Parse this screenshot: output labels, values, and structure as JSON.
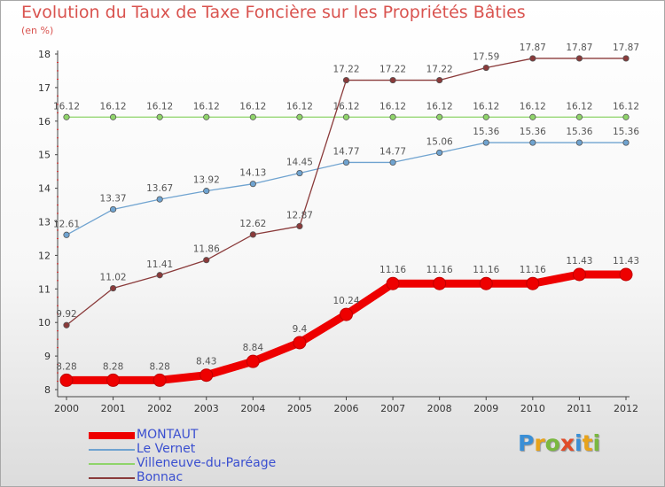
{
  "title": "Evolution du Taux de Taxe Foncière sur les Propriétés Bâties",
  "unit_label": "(en %)",
  "logo": {
    "letters": [
      {
        "ch": "P",
        "color": "#3a8fd6"
      },
      {
        "ch": "r",
        "color": "#e8a31a"
      },
      {
        "ch": "o",
        "color": "#7ab840"
      },
      {
        "ch": "x",
        "color": "#e04c2a"
      },
      {
        "ch": "i",
        "color": "#3a8fd6"
      },
      {
        "ch": "t",
        "color": "#e8a31a"
      },
      {
        "ch": "i",
        "color": "#7ab840"
      }
    ]
  },
  "chart_data": {
    "type": "line",
    "x": [
      "2000",
      "2001",
      "2002",
      "2003",
      "2004",
      "2005",
      "2006",
      "2007",
      "2008",
      "2009",
      "2010",
      "2011",
      "2012"
    ],
    "ylim": [
      8,
      18
    ],
    "yticks": [
      "8",
      "9",
      "10",
      "11",
      "12",
      "13",
      "14",
      "15",
      "16",
      "17",
      "18"
    ],
    "grid": false,
    "legend_position": "bottom-left",
    "series": [
      {
        "name": "MONTAUT",
        "color": "#ee0000",
        "values": [
          8.28,
          8.28,
          8.28,
          8.43,
          8.84,
          9.4,
          10.24,
          11.16,
          11.16,
          11.16,
          11.16,
          11.43,
          11.43
        ],
        "labels": [
          "8.28",
          "8.28",
          "8.28",
          "8.43",
          "8.84",
          "9.4",
          "10.24",
          "11.16",
          "11.16",
          "11.16",
          "11.16",
          "11.43",
          "11.43"
        ]
      },
      {
        "name": "Le Vernet",
        "color": "#6fa3d0",
        "values": [
          12.61,
          13.37,
          13.67,
          13.92,
          14.13,
          14.45,
          14.77,
          14.77,
          15.06,
          15.36,
          15.36,
          15.36,
          15.36
        ],
        "labels": [
          "12.61",
          "13.37",
          "13.67",
          "13.92",
          "14.13",
          "14.45",
          "14.77",
          "14.77",
          "15.06",
          "15.36",
          "15.36",
          "15.36",
          "15.36"
        ]
      },
      {
        "name": "Villeneuve-du-Paréage",
        "color": "#8fd46a",
        "values": [
          16.12,
          16.12,
          16.12,
          16.12,
          16.12,
          16.12,
          16.12,
          16.12,
          16.12,
          16.12,
          16.12,
          16.12,
          16.12
        ],
        "labels": [
          "16.12",
          "16.12",
          "16.12",
          "16.12",
          "16.12",
          "16.12",
          "16.12",
          "16.12",
          "16.12",
          "16.12",
          "16.12",
          "16.12",
          "16.12"
        ]
      },
      {
        "name": "Bonnac",
        "color": "#8a3a3a",
        "values": [
          9.92,
          11.02,
          11.41,
          11.86,
          12.62,
          12.87,
          17.22,
          17.22,
          17.22,
          17.59,
          17.87,
          17.87,
          17.87
        ],
        "labels": [
          "9.92",
          "11.02",
          "11.41",
          "11.86",
          "12.62",
          "12.87",
          "17.22",
          "17.22",
          "17.22",
          "17.59",
          "17.87",
          "17.87",
          "17.87"
        ]
      }
    ]
  }
}
